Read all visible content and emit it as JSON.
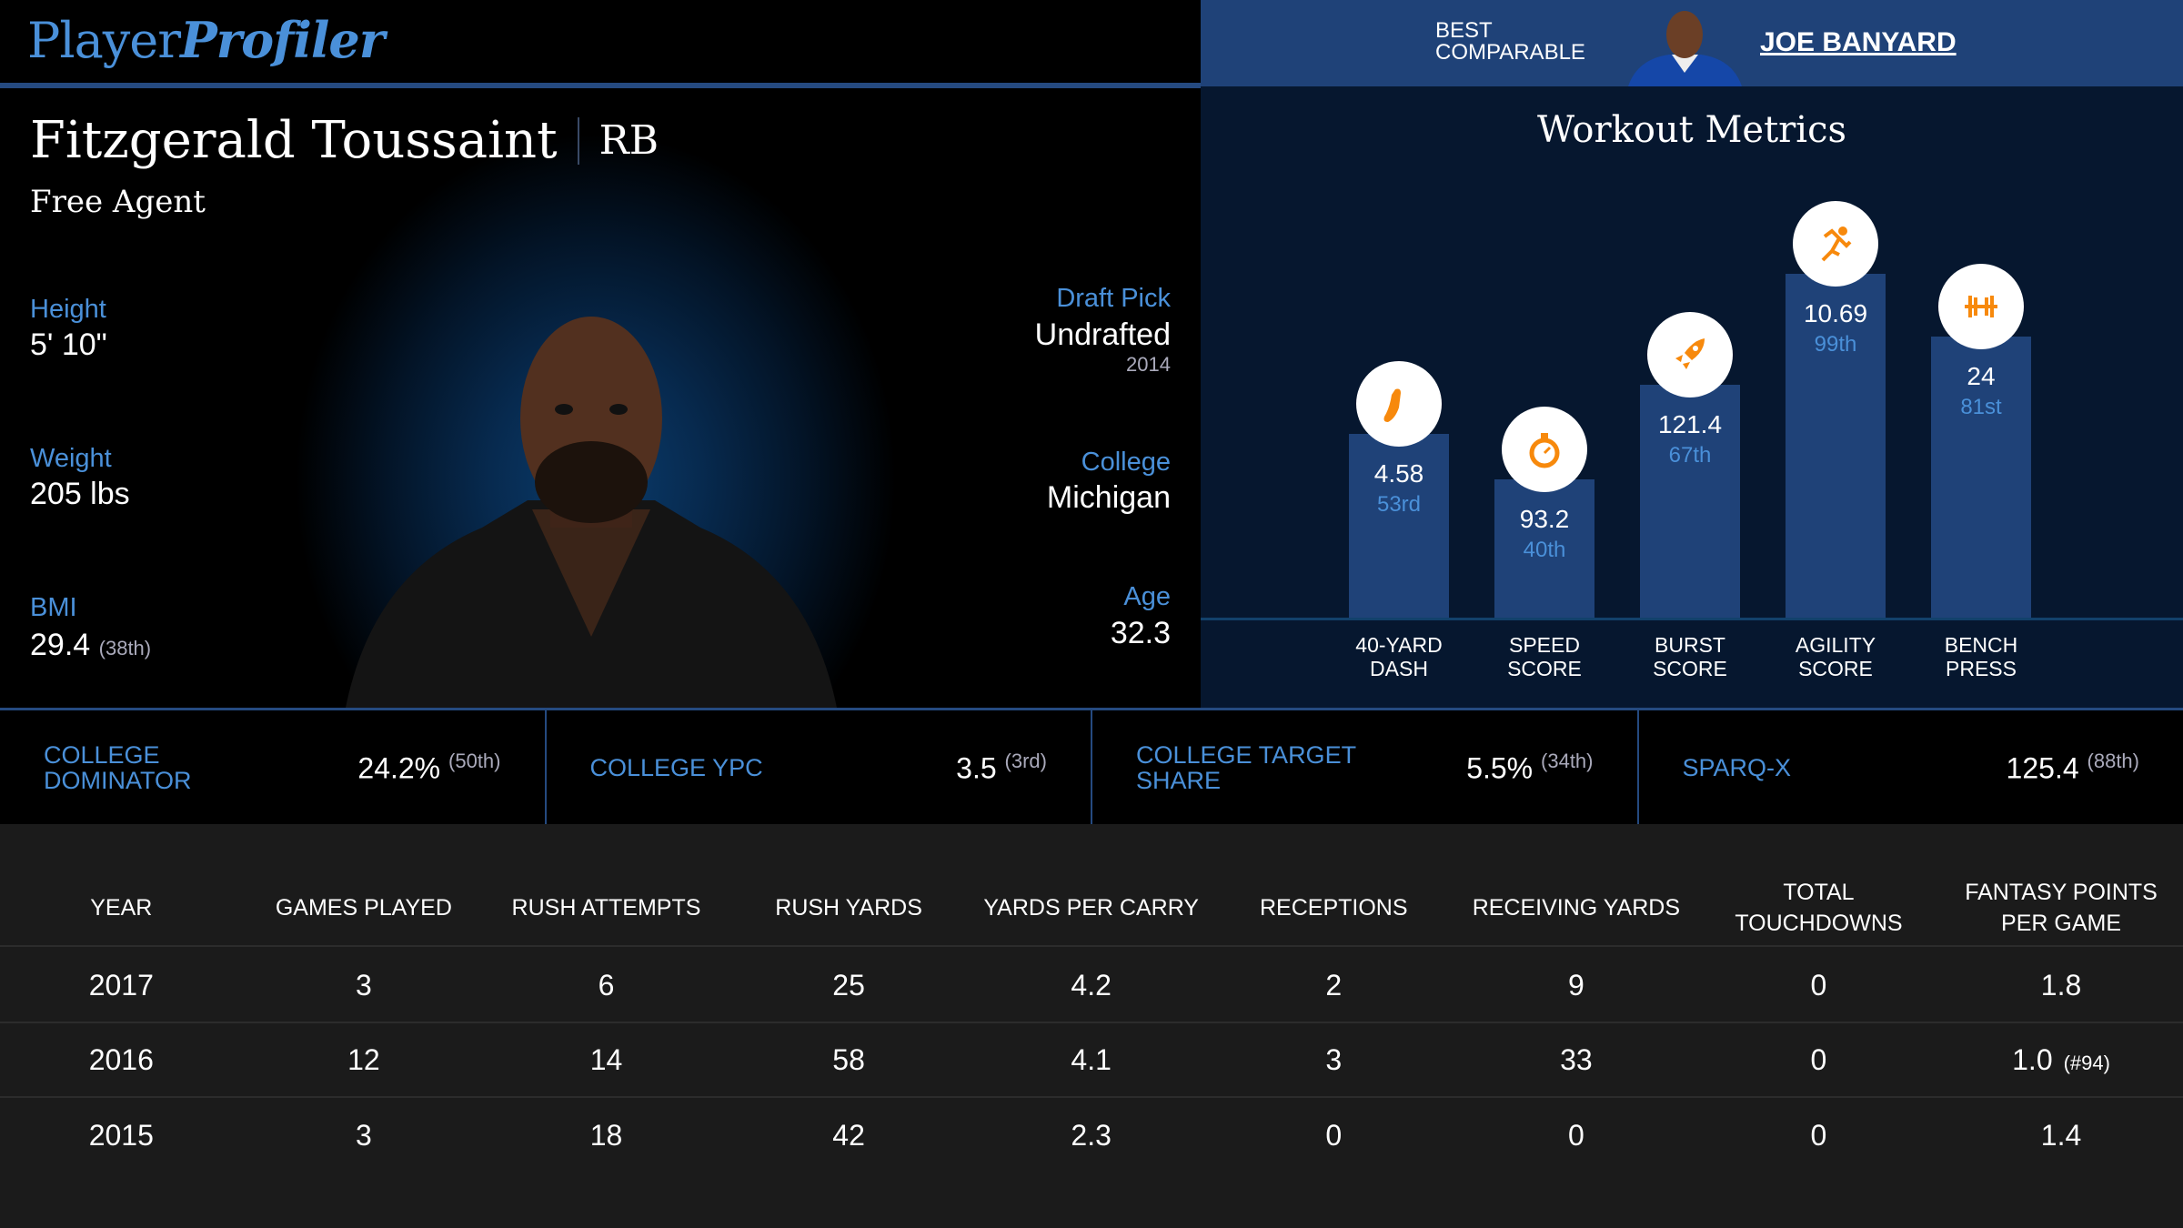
{
  "brand": {
    "part1": "Player",
    "part2": "Profiler"
  },
  "player": {
    "name": "Fitzgerald Toussaint",
    "position": "RB",
    "team": "Free Agent",
    "height": {
      "label": "Height",
      "value": "5' 10\""
    },
    "weight": {
      "label": "Weight",
      "value": "205 lbs"
    },
    "bmi": {
      "label": "BMI",
      "value": "29.4",
      "rank": "(38th)"
    },
    "draft": {
      "label": "Draft Pick",
      "value": "Undrafted",
      "year": "2014"
    },
    "college": {
      "label": "College",
      "value": "Michigan"
    },
    "age": {
      "label": "Age",
      "value": "32.3"
    }
  },
  "comparable": {
    "label_line1": "BEST",
    "label_line2": "COMPARABLE",
    "name": "JOE BANYARD"
  },
  "workout": {
    "title": "Workout Metrics",
    "accent": "#f7890c",
    "bar_color": "#1f4278",
    "metrics": [
      {
        "label1": "40-YARD",
        "label2": "DASH",
        "value": "4.58",
        "pct_label": "53rd",
        "percentile": 53,
        "icon": "shoe-icon"
      },
      {
        "label1": "SPEED",
        "label2": "SCORE",
        "value": "93.2",
        "pct_label": "40th",
        "percentile": 40,
        "icon": "stopwatch-icon"
      },
      {
        "label1": "BURST",
        "label2": "SCORE",
        "value": "121.4",
        "pct_label": "67th",
        "percentile": 67,
        "icon": "rocket-icon"
      },
      {
        "label1": "AGILITY",
        "label2": "SCORE",
        "value": "10.69",
        "pct_label": "99th",
        "percentile": 99,
        "icon": "runner-icon"
      },
      {
        "label1": "BENCH",
        "label2": "PRESS",
        "value": "24",
        "pct_label": "81st",
        "percentile": 81,
        "icon": "dumbbell-icon"
      }
    ]
  },
  "college_stats": [
    {
      "label": "COLLEGE DOMINATOR",
      "value": "24.2%",
      "rank": "(50th)"
    },
    {
      "label": "COLLEGE YPC",
      "value": "3.5",
      "rank": "(3rd)"
    },
    {
      "label": "COLLEGE TARGET SHARE",
      "value": "5.5%",
      "rank": "(34th)"
    },
    {
      "label": "SPARQ-X",
      "value": "125.4",
      "rank": "(88th)"
    }
  ],
  "stats_table": {
    "headers": [
      "YEAR",
      "GAMES PLAYED",
      "RUSH ATTEMPTS",
      "RUSH YARDS",
      "YARDS PER CARRY",
      "RECEPTIONS",
      "RECEIVING YARDS",
      "TOTAL TOUCHDOWNS",
      "FANTASY POINTS PER GAME"
    ],
    "rows": [
      {
        "cells": [
          "2017",
          "3",
          "6",
          "25",
          "4.2",
          "2",
          "9",
          "0",
          "1.8"
        ],
        "rank": ""
      },
      {
        "cells": [
          "2016",
          "12",
          "14",
          "58",
          "4.1",
          "3",
          "33",
          "0",
          "1.0"
        ],
        "rank": "(#94)"
      },
      {
        "cells": [
          "2015",
          "3",
          "18",
          "42",
          "2.3",
          "0",
          "0",
          "0",
          "1.4"
        ],
        "rank": ""
      }
    ]
  }
}
